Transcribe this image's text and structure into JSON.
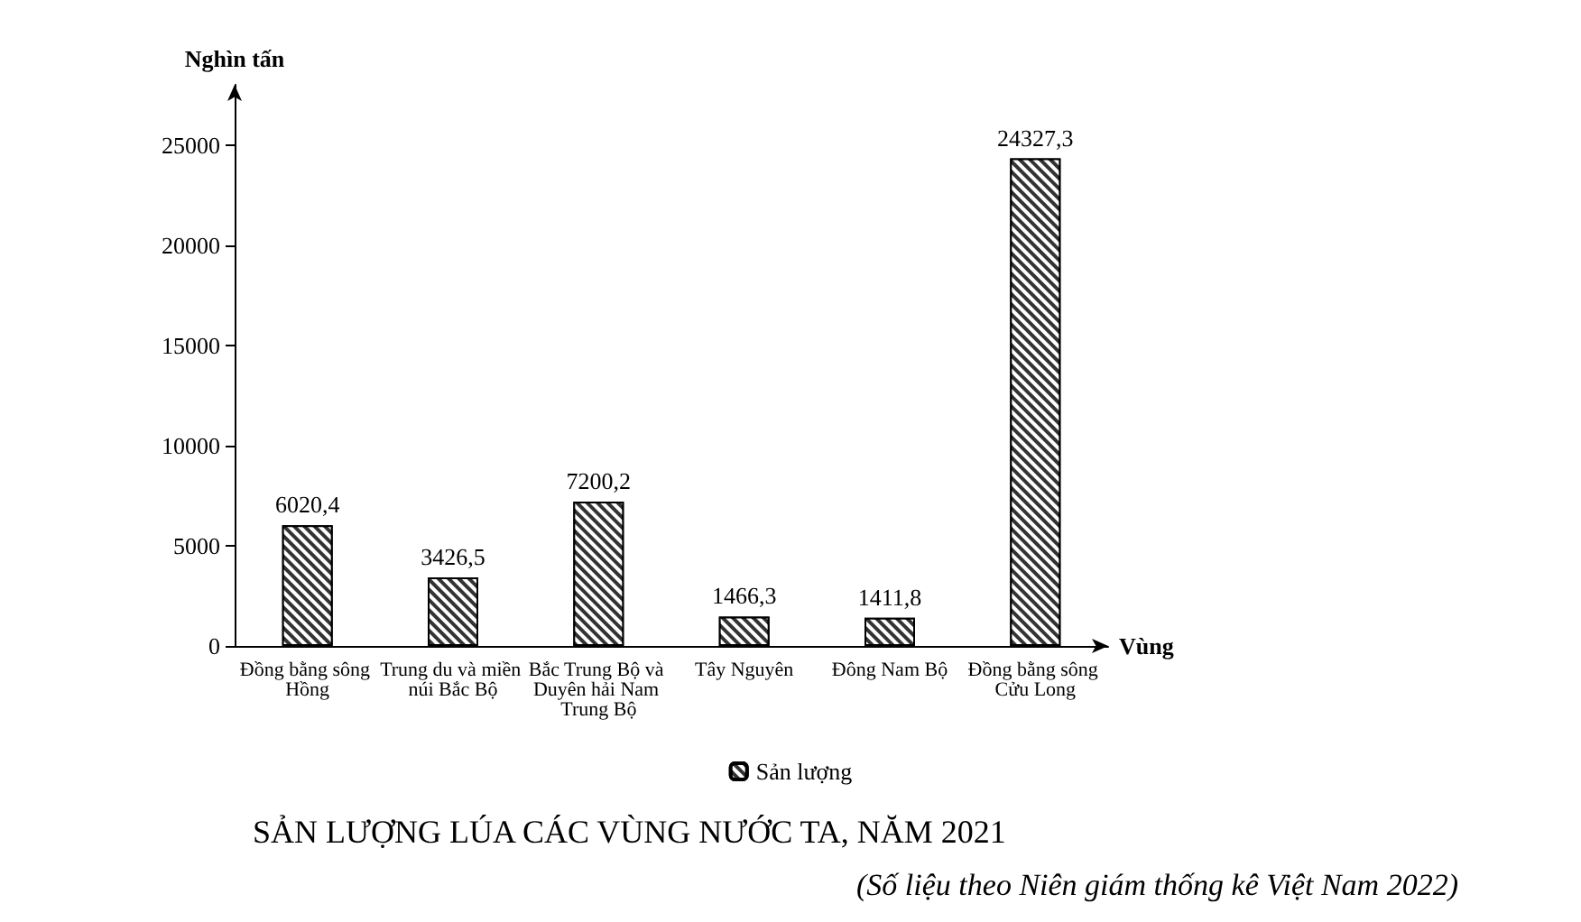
{
  "chart_data": {
    "type": "bar",
    "title": "SẢN LƯỢNG LÚA CÁC VÙNG NƯỚC TA, NĂM 2021",
    "annotations": [
      "(Số liệu theo Niên giám thống kê Việt Nam 2022)"
    ],
    "xlabel": "Vùng",
    "ylabel": "Nghìn tấn",
    "categories": [
      "Đồng bằng sông Hồng",
      "Trung du và miền núi Bắc Bộ",
      "Bắc Trung Bộ và Duyên hải Nam Trung Bộ",
      "Tây Nguyên",
      "Đông Nam Bộ",
      "Đồng bằng sông Cửu Long"
    ],
    "series": [
      {
        "name": "Sản lượng",
        "color": "#333333",
        "values": [
          6020.4,
          3426.5,
          7200.2,
          1466.3,
          1411.8,
          24327.3
        ],
        "value_labels": [
          "6020,4",
          "3426,5",
          "7200,2",
          "1466,3",
          "1411,8",
          "24327,3"
        ]
      }
    ],
    "ylim": [
      0,
      28000
    ],
    "yticks": [
      0,
      5000,
      10000,
      15000,
      20000,
      25000
    ],
    "grid": false,
    "legend": "bottom"
  }
}
